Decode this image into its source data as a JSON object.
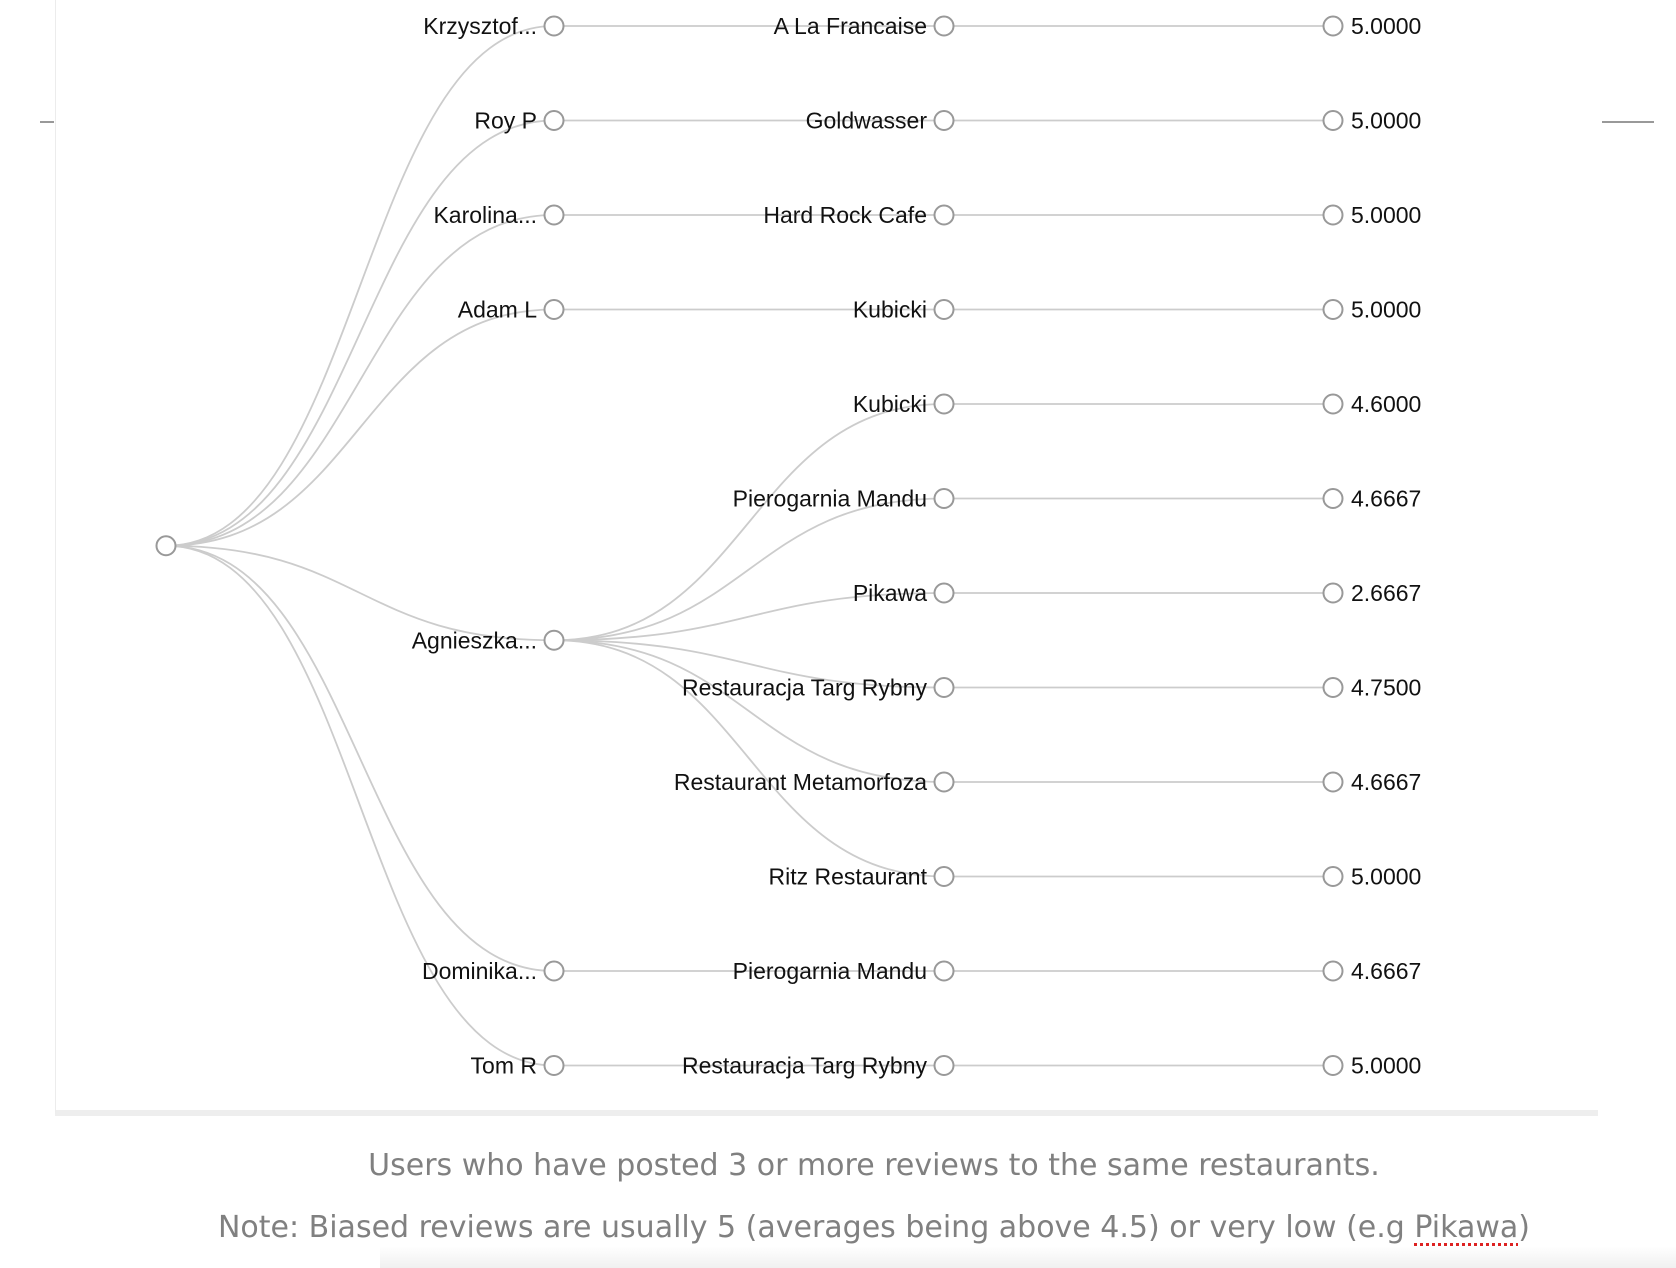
{
  "tree": {
    "root": {
      "name": ""
    },
    "users": [
      {
        "name": "Krzysztof...",
        "restaurants": [
          {
            "name": "A La Francaise",
            "score": "5.0000"
          }
        ]
      },
      {
        "name": "Roy P",
        "restaurants": [
          {
            "name": "Goldwasser",
            "score": "5.0000"
          }
        ]
      },
      {
        "name": "Karolina...",
        "restaurants": [
          {
            "name": "Hard Rock Cafe",
            "score": "5.0000"
          }
        ]
      },
      {
        "name": "Adam L",
        "restaurants": [
          {
            "name": "Kubicki",
            "score": "5.0000"
          }
        ]
      },
      {
        "name": "Agnieszka...",
        "restaurants": [
          {
            "name": "Kubicki",
            "score": "4.6000"
          },
          {
            "name": "Pierogarnia Mandu",
            "score": "4.6667"
          },
          {
            "name": "Pikawa",
            "score": "2.6667"
          },
          {
            "name": "Restauracja Targ Rybny",
            "score": "4.7500"
          },
          {
            "name": "Restaurant Metamorfoza",
            "score": "4.6667"
          },
          {
            "name": "Ritz Restaurant",
            "score": "5.0000"
          }
        ]
      },
      {
        "name": "Dominika...",
        "restaurants": [
          {
            "name": "Pierogarnia Mandu",
            "score": "4.6667"
          }
        ]
      },
      {
        "name": "Tom R",
        "restaurants": [
          {
            "name": "Restauracja Targ Rybny",
            "score": "5.0000"
          }
        ]
      }
    ]
  },
  "caption": {
    "line1": "Users who have posted 3 or more reviews to the same restaurants.",
    "line2_before": "Note: Biased reviews are usually 5 (averages being above 4.5) or very low (e.g ",
    "line2_highlight": "Pikawa",
    "line2_after": ")"
  },
  "colors": {
    "edge": "#cccccc",
    "node_stroke": "#999999",
    "caption": "#808080"
  }
}
